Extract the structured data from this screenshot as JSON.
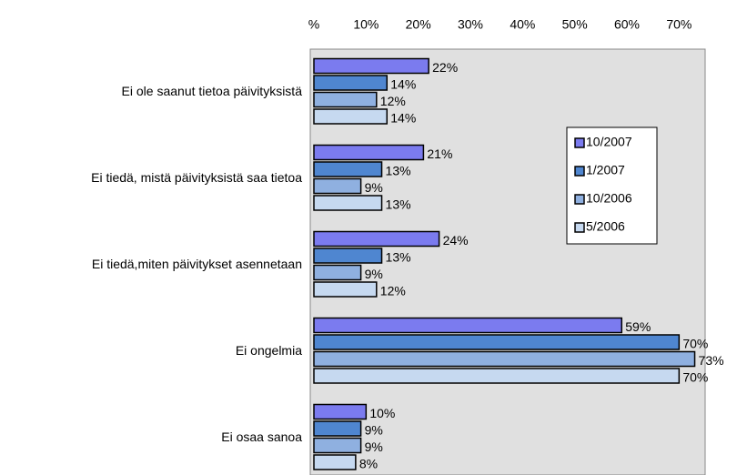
{
  "chart_data": {
    "type": "bar",
    "orientation": "horizontal",
    "categories": [
      "Ei ole saanut tietoa päivityksistä",
      "Ei tiedä, mistä päivityksistä saa tietoa",
      "Ei tiedä,miten päivitykset asennetaan",
      "Ei ongelmia",
      "Ei osaa sanoa"
    ],
    "series": [
      {
        "name": "10/2007",
        "color": "#7b7bef",
        "values": [
          22,
          21,
          24,
          59,
          10
        ],
        "value_labels": [
          "22%",
          "21%",
          "24%",
          "59%",
          "10%"
        ]
      },
      {
        "name": "1/2007",
        "color": "#4f86d0",
        "values": [
          14,
          13,
          13,
          70,
          9
        ],
        "value_labels": [
          "14%",
          "13%",
          "13%",
          "70%",
          "9%"
        ]
      },
      {
        "name": "10/2006",
        "color": "#8fb0e0",
        "values": [
          12,
          9,
          9,
          73,
          9
        ],
        "value_labels": [
          "12%",
          "9%",
          "9%",
          "73%",
          "9%"
        ]
      },
      {
        "name": "5/2006",
        "color": "#c6d9f0",
        "values": [
          14,
          13,
          12,
          70,
          8
        ],
        "value_labels": [
          "14%",
          "13%",
          "12%",
          "70%",
          "8%"
        ]
      }
    ],
    "xlim": [
      0,
      75
    ],
    "xticks": [
      {
        "value": 0,
        "label": "%"
      },
      {
        "value": 10,
        "label": "10%"
      },
      {
        "value": 20,
        "label": "20%"
      },
      {
        "value": 30,
        "label": "30%"
      },
      {
        "value": 40,
        "label": "40%"
      },
      {
        "value": 50,
        "label": "50%"
      },
      {
        "value": 60,
        "label": "60%"
      },
      {
        "value": 70,
        "label": "70%"
      }
    ],
    "legend": "right"
  }
}
